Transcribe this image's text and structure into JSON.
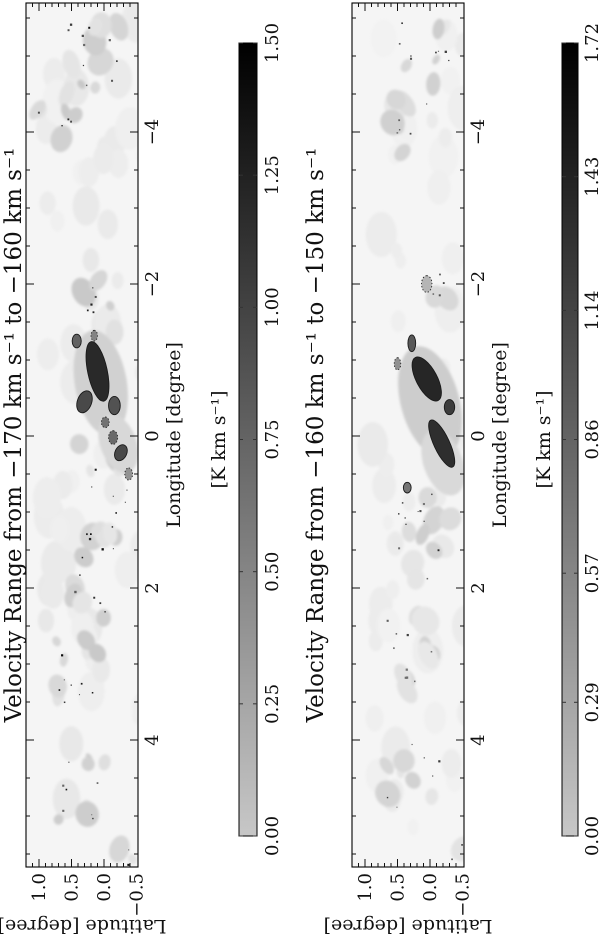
{
  "figure_caption": "Two-panel velocity-integrated CO emission maps (figure rotated 90 degrees)",
  "chart_data": [
    {
      "type": "heatmap",
      "title": "Velocity Range from −170 km s⁻¹ to −160 km s⁻¹",
      "xlabel": "Longitude [degree]",
      "ylabel": "Latitude [degree]",
      "xlim": [
        5.7,
        -5.7
      ],
      "ylim": [
        -0.52,
        1.2
      ],
      "grid": false,
      "xtick_values": [
        4,
        2,
        0,
        -2,
        -4
      ],
      "xtick_labels": [
        "4",
        "2",
        "0",
        "−2",
        "−4"
      ],
      "ytick_values": [
        1.0,
        0.5,
        0.0,
        -0.5
      ],
      "ytick_labels": [
        "1.0",
        "0.5",
        "0.0",
        "−0.5"
      ],
      "colorbar": {
        "label": "[K km s⁻¹]",
        "min": 0.0,
        "max": 1.5,
        "tick_values": [
          0.0,
          0.25,
          0.5,
          0.75,
          1.0,
          1.25,
          1.5
        ],
        "tick_labels": [
          "0.00",
          "0.25",
          "0.50",
          "0.75",
          "1.00",
          "1.25",
          "1.50"
        ],
        "light_hex": "#c7c7c7",
        "dark_hex": "#000000"
      },
      "blob_format": "[lon_deg, lat_deg, r_lon_deg, r_lat_deg, rot_deg, value_K_km_s, contour]",
      "blobs": [
        [
          -0.85,
          0.1,
          0.4,
          0.15,
          -12,
          1.25,
          "solid"
        ],
        [
          -0.9,
          0.12,
          0.2,
          0.08,
          -12,
          1.5,
          ""
        ],
        [
          -0.45,
          0.3,
          0.15,
          0.11,
          20,
          1.05,
          "solid"
        ],
        [
          -1.25,
          0.42,
          0.09,
          0.07,
          0,
          0.9,
          "solid"
        ],
        [
          -1.32,
          0.15,
          0.07,
          0.05,
          0,
          0.7,
          "dotted"
        ],
        [
          -0.4,
          -0.16,
          0.12,
          0.09,
          0,
          1.0,
          "solid"
        ],
        [
          -0.18,
          -0.02,
          0.07,
          0.06,
          0,
          0.8,
          "dotted"
        ],
        [
          0.02,
          -0.14,
          0.09,
          0.07,
          0,
          0.85,
          "dotted"
        ],
        [
          0.22,
          -0.26,
          0.11,
          0.09,
          25,
          1.05,
          "solid"
        ],
        [
          0.5,
          -0.38,
          0.08,
          0.06,
          0,
          0.6,
          "dotted"
        ],
        [
          -0.7,
          0.05,
          0.7,
          0.4,
          -10,
          0.22,
          ""
        ],
        [
          0.1,
          -0.22,
          0.4,
          0.28,
          -20,
          0.18,
          ""
        ]
      ],
      "cluster_format": "[lon_deg, lat_deg, spread_lon, spread_lat, n_faint_patches, n_dark_specks]",
      "clusters": [
        [
          -4.95,
          0.15,
          0.55,
          0.45,
          9,
          10
        ],
        [
          -4.05,
          0.55,
          0.25,
          0.25,
          3,
          3
        ],
        [
          -4.3,
          1.0,
          0.12,
          0.08,
          2,
          1
        ],
        [
          -1.7,
          0.1,
          0.35,
          0.3,
          4,
          5
        ],
        [
          0.9,
          0.0,
          0.8,
          0.4,
          11,
          13
        ],
        [
          2.1,
          0.2,
          0.35,
          0.3,
          4,
          5
        ],
        [
          3.1,
          0.4,
          0.5,
          0.35,
          7,
          8
        ],
        [
          4.6,
          0.3,
          0.5,
          0.4,
          6,
          7
        ],
        [
          5.45,
          -0.4,
          0.22,
          0.18,
          2,
          2
        ]
      ],
      "noise_seed": 7
    },
    {
      "type": "heatmap",
      "title": "Velocity Range from −160 km s⁻¹ to −150 km s⁻¹",
      "xlabel": "Longitude [degree]",
      "ylabel": "Latitude [degree]",
      "xlim": [
        5.7,
        -5.7
      ],
      "ylim": [
        -0.52,
        1.2
      ],
      "grid": false,
      "xtick_values": [
        4,
        2,
        0,
        -2,
        -4
      ],
      "xtick_labels": [
        "4",
        "2",
        "0",
        "−2",
        "−4"
      ],
      "ytick_values": [
        1.0,
        0.5,
        0.0,
        -0.5
      ],
      "ytick_labels": [
        "1.0",
        "0.5",
        "0.0",
        "−0.5"
      ],
      "colorbar": {
        "label": "[K km s⁻¹]",
        "min": 0.0,
        "max": 1.72,
        "tick_values": [
          0.0,
          0.29,
          0.57,
          0.86,
          1.14,
          1.43,
          1.72
        ],
        "tick_labels": [
          "0.00",
          "0.29",
          "0.57",
          "0.86",
          "1.14",
          "1.43",
          "1.72"
        ],
        "light_hex": "#c7c7c7",
        "dark_hex": "#000000"
      },
      "blob_format": "[lon_deg, lat_deg, r_lon_deg, r_lat_deg, rot_deg, value_K_km_s, contour]",
      "blobs": [
        [
          -0.75,
          0.05,
          0.32,
          0.16,
          -28,
          1.45,
          "solid"
        ],
        [
          -0.8,
          0.02,
          0.16,
          0.09,
          -28,
          1.7,
          ""
        ],
        [
          0.1,
          -0.18,
          0.34,
          0.12,
          -25,
          1.4,
          "solid"
        ],
        [
          0.05,
          -0.2,
          0.18,
          0.07,
          -25,
          1.7,
          ""
        ],
        [
          -1.22,
          0.28,
          0.11,
          0.06,
          0,
          1.1,
          "solid"
        ],
        [
          -0.38,
          -0.3,
          0.1,
          0.08,
          0,
          1.3,
          "solid"
        ],
        [
          0.68,
          0.35,
          0.07,
          0.06,
          0,
          0.9,
          "solid"
        ],
        [
          -0.95,
          0.5,
          0.08,
          0.05,
          0,
          0.7,
          "dotted"
        ],
        [
          -2.0,
          0.05,
          0.11,
          0.08,
          0,
          0.45,
          "dotted"
        ],
        [
          -0.45,
          0.0,
          0.75,
          0.45,
          -15,
          0.28,
          ""
        ],
        [
          0.35,
          -0.2,
          0.45,
          0.3,
          -20,
          0.2,
          ""
        ]
      ],
      "cluster_format": "[lon_deg, lat_deg, spread_lon, spread_lat, n_faint_patches, n_dark_specks]",
      "clusters": [
        [
          -4.9,
          0.1,
          0.6,
          0.45,
          8,
          9
        ],
        [
          -4.0,
          0.5,
          0.28,
          0.25,
          3,
          4
        ],
        [
          1.3,
          0.1,
          0.7,
          0.45,
          10,
          12
        ],
        [
          2.9,
          0.3,
          0.55,
          0.4,
          8,
          9
        ],
        [
          4.5,
          0.25,
          0.55,
          0.45,
          6,
          6
        ],
        [
          5.4,
          -0.45,
          0.25,
          0.18,
          2,
          2
        ],
        [
          -2.0,
          -0.1,
          0.25,
          0.2,
          3,
          4
        ]
      ],
      "noise_seed": 13
    }
  ]
}
